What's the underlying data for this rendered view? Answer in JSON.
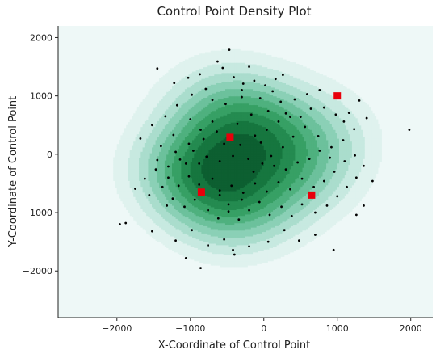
{
  "chart_data": {
    "type": "scatter",
    "title": "Control Point Density Plot",
    "xlabel": "X-Coordinate of Control Point",
    "ylabel": "Y-Coordinate of Control Point",
    "xlim": [
      -2800,
      2300
    ],
    "ylim": [
      -2800,
      2200
    ],
    "xticks": [
      -2000,
      -1000,
      0,
      1000,
      2000
    ],
    "yticks": [
      -2000,
      -1000,
      0,
      1000,
      2000
    ],
    "grid": false,
    "background_color": "#eef8f7",
    "density_colormap": [
      "#dff2ee",
      "#c7e9e0",
      "#aaddcd",
      "#8bd0b6",
      "#6cc19c",
      "#4fb17f",
      "#37a065",
      "#248b50",
      "#16763f",
      "#0d5f31"
    ],
    "point_color": "#000000",
    "control_point_color": "#e8000b",
    "control_points": [
      {
        "x": -460,
        "y": 290
      },
      {
        "x": 1000,
        "y": 1000
      },
      {
        "x": -850,
        "y": -650
      },
      {
        "x": 650,
        "y": -700
      }
    ],
    "density_centers": [
      {
        "x": -950,
        "y": -250,
        "w": 1.0
      },
      {
        "x": -400,
        "y": -880,
        "w": 0.85
      },
      {
        "x": -150,
        "y": 450,
        "w": 0.8
      },
      {
        "x": 450,
        "y": -300,
        "w": 0.6
      },
      {
        "x": -600,
        "y": 900,
        "w": 0.45
      },
      {
        "x": 800,
        "y": 400,
        "w": 0.35
      }
    ],
    "points": [
      [
        -470,
        1790
      ],
      [
        -630,
        1590
      ],
      [
        -1450,
        1470
      ],
      [
        -1220,
        1220
      ],
      [
        -1030,
        1310
      ],
      [
        -870,
        1370
      ],
      [
        -790,
        1120
      ],
      [
        -560,
        1480
      ],
      [
        -410,
        1320
      ],
      [
        -280,
        1210
      ],
      [
        -130,
        1260
      ],
      [
        20,
        1180
      ],
      [
        160,
        1290
      ],
      [
        260,
        1360
      ],
      [
        120,
        1080
      ],
      [
        -50,
        960
      ],
      [
        -300,
        980
      ],
      [
        -520,
        860
      ],
      [
        -700,
        930
      ],
      [
        -980,
        1020
      ],
      [
        -1180,
        840
      ],
      [
        -1340,
        650
      ],
      [
        -1520,
        500
      ],
      [
        -1680,
        270
      ],
      [
        -1400,
        140
      ],
      [
        -1230,
        330
      ],
      [
        -1020,
        180
      ],
      [
        -820,
        260
      ],
      [
        -640,
        390
      ],
      [
        -360,
        520
      ],
      [
        -170,
        680
      ],
      [
        60,
        740
      ],
      [
        230,
        900
      ],
      [
        420,
        940
      ],
      [
        590,
        1030
      ],
      [
        760,
        1100
      ],
      [
        820,
        800
      ],
      [
        980,
        680
      ],
      [
        1090,
        560
      ],
      [
        1160,
        710
      ],
      [
        1230,
        430
      ],
      [
        1080,
        240
      ],
      [
        920,
        120
      ],
      [
        740,
        310
      ],
      [
        560,
        470
      ],
      [
        400,
        300
      ],
      [
        260,
        120
      ],
      [
        100,
        -30
      ],
      [
        -40,
        200
      ],
      [
        -210,
        -80
      ],
      [
        -420,
        -30
      ],
      [
        -600,
        -120
      ],
      [
        -780,
        -40
      ],
      [
        -960,
        60
      ],
      [
        -1140,
        -90
      ],
      [
        -1300,
        -210
      ],
      [
        -1470,
        -260
      ],
      [
        -1620,
        -420
      ],
      [
        -1750,
        -590
      ],
      [
        -1560,
        -700
      ],
      [
        -1380,
        -560
      ],
      [
        -1240,
        -760
      ],
      [
        -1080,
        -900
      ],
      [
        -940,
        -780
      ],
      [
        -760,
        -960
      ],
      [
        -620,
        -1100
      ],
      [
        -480,
        -980
      ],
      [
        -340,
        -1120
      ],
      [
        -200,
        -960
      ],
      [
        -60,
        -820
      ],
      [
        80,
        -1040
      ],
      [
        240,
        -900
      ],
      [
        380,
        -1060
      ],
      [
        520,
        -860
      ],
      [
        700,
        -1000
      ],
      [
        860,
        -880
      ],
      [
        1000,
        -720
      ],
      [
        1130,
        -560
      ],
      [
        1260,
        -400
      ],
      [
        1360,
        -200
      ],
      [
        1240,
        -20
      ],
      [
        1100,
        -120
      ],
      [
        960,
        -300
      ],
      [
        820,
        -460
      ],
      [
        680,
        -560
      ],
      [
        520,
        -420
      ],
      [
        360,
        -600
      ],
      [
        200,
        -480
      ],
      [
        40,
        -640
      ],
      [
        -120,
        -500
      ],
      [
        -280,
        -660
      ],
      [
        -440,
        -540
      ],
      [
        -600,
        -700
      ],
      [
        -700,
        -420
      ],
      [
        -880,
        -520
      ],
      [
        -1020,
        -380
      ],
      [
        -1160,
        -540
      ],
      [
        -1320,
        -880
      ],
      [
        -1880,
        -1180
      ],
      [
        -1960,
        -1200
      ],
      [
        -1520,
        -1320
      ],
      [
        -1200,
        -1480
      ],
      [
        -980,
        -1300
      ],
      [
        -760,
        -1560
      ],
      [
        -540,
        -1460
      ],
      [
        -400,
        -1720
      ],
      [
        -200,
        -1580
      ],
      [
        60,
        -1500
      ],
      [
        280,
        -1300
      ],
      [
        480,
        -1480
      ],
      [
        700,
        -1380
      ],
      [
        950,
        -1640
      ],
      [
        1260,
        -1040
      ],
      [
        1360,
        -880
      ],
      [
        1480,
        -460
      ],
      [
        1980,
        420
      ],
      [
        1300,
        920
      ],
      [
        1400,
        620
      ],
      [
        -860,
        -1950
      ],
      [
        -420,
        -1640
      ],
      [
        -1060,
        -1780
      ],
      [
        -600,
        -620
      ],
      [
        -480,
        -860
      ],
      [
        -300,
        -780
      ],
      [
        -140,
        -300
      ],
      [
        -20,
        -160
      ],
      [
        140,
        -200
      ],
      [
        300,
        -260
      ],
      [
        460,
        -140
      ],
      [
        620,
        -80
      ],
      [
        760,
        60
      ],
      [
        900,
        -60
      ],
      [
        -880,
        -160
      ],
      [
        -1060,
        -160
      ],
      [
        -1200,
        40
      ],
      [
        -860,
        420
      ],
      [
        -700,
        560
      ],
      [
        -540,
        180
      ],
      [
        -320,
        160
      ],
      [
        -120,
        320
      ],
      [
        40,
        420
      ],
      [
        200,
        560
      ],
      [
        360,
        640
      ],
      [
        500,
        640
      ],
      [
        640,
        780
      ],
      [
        -1000,
        600
      ],
      [
        -1300,
        -400
      ],
      [
        -1450,
        -100
      ],
      [
        -300,
        1100
      ],
      [
        -200,
        1500
      ],
      [
        300,
        700
      ]
    ]
  }
}
